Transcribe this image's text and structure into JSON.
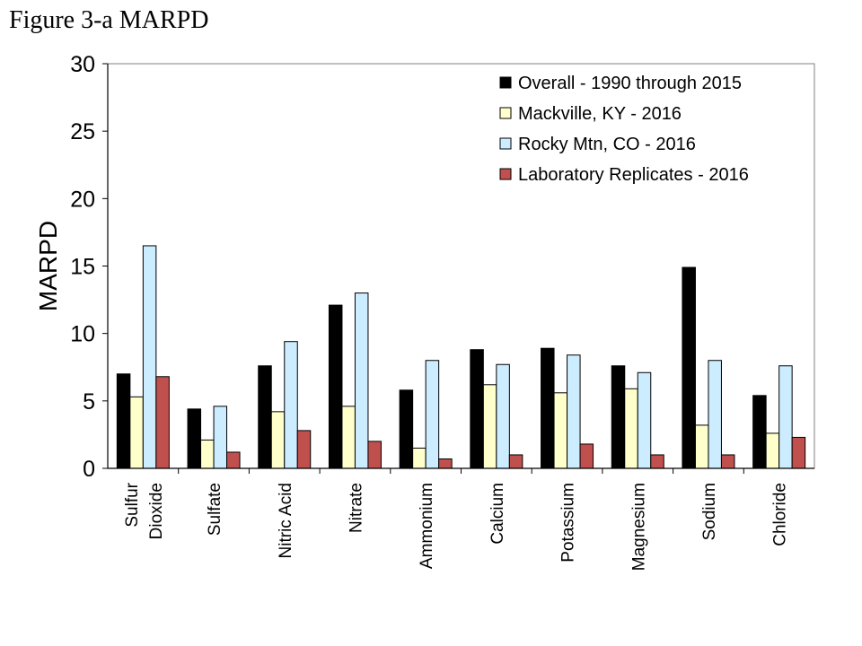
{
  "figure_title": "Figure 3-a MARPD",
  "chart_data": {
    "type": "bar",
    "title": "Figure 3-a MARPD",
    "xlabel": "",
    "ylabel": "MARPD",
    "ylim": [
      0,
      30
    ],
    "yticks": [
      0,
      5,
      10,
      15,
      20,
      25,
      30
    ],
    "grid": false,
    "legend_position": "top-right",
    "categories": [
      [
        "Sulfur",
        "Dioxide"
      ],
      [
        "Sulfate"
      ],
      [
        "Nitric Acid"
      ],
      [
        "Nitrate"
      ],
      [
        "Ammonium"
      ],
      [
        "Calcium"
      ],
      [
        "Potassium"
      ],
      [
        "Magnesium"
      ],
      [
        "Sodium"
      ],
      [
        "Chloride"
      ]
    ],
    "series": [
      {
        "name": "Overall - 1990 through 2015",
        "color": "#000000",
        "values": [
          7.0,
          4.4,
          7.6,
          12.1,
          5.8,
          8.8,
          8.9,
          7.6,
          14.9,
          5.4
        ]
      },
      {
        "name": "Mackville, KY - 2016",
        "color": "#FFFFCC",
        "values": [
          5.3,
          2.1,
          4.2,
          4.6,
          1.5,
          6.2,
          5.6,
          5.9,
          3.2,
          2.6
        ]
      },
      {
        "name": "Rocky Mtn, CO - 2016",
        "color": "#CCECFF",
        "values": [
          16.5,
          4.6,
          9.4,
          13.0,
          8.0,
          7.7,
          8.4,
          7.1,
          8.0,
          7.6
        ]
      },
      {
        "name": "Laboratory Replicates - 2016",
        "color": "#C0504D",
        "values": [
          6.8,
          1.2,
          2.8,
          2.0,
          0.7,
          1.0,
          1.8,
          1.0,
          1.0,
          2.3
        ]
      }
    ]
  }
}
